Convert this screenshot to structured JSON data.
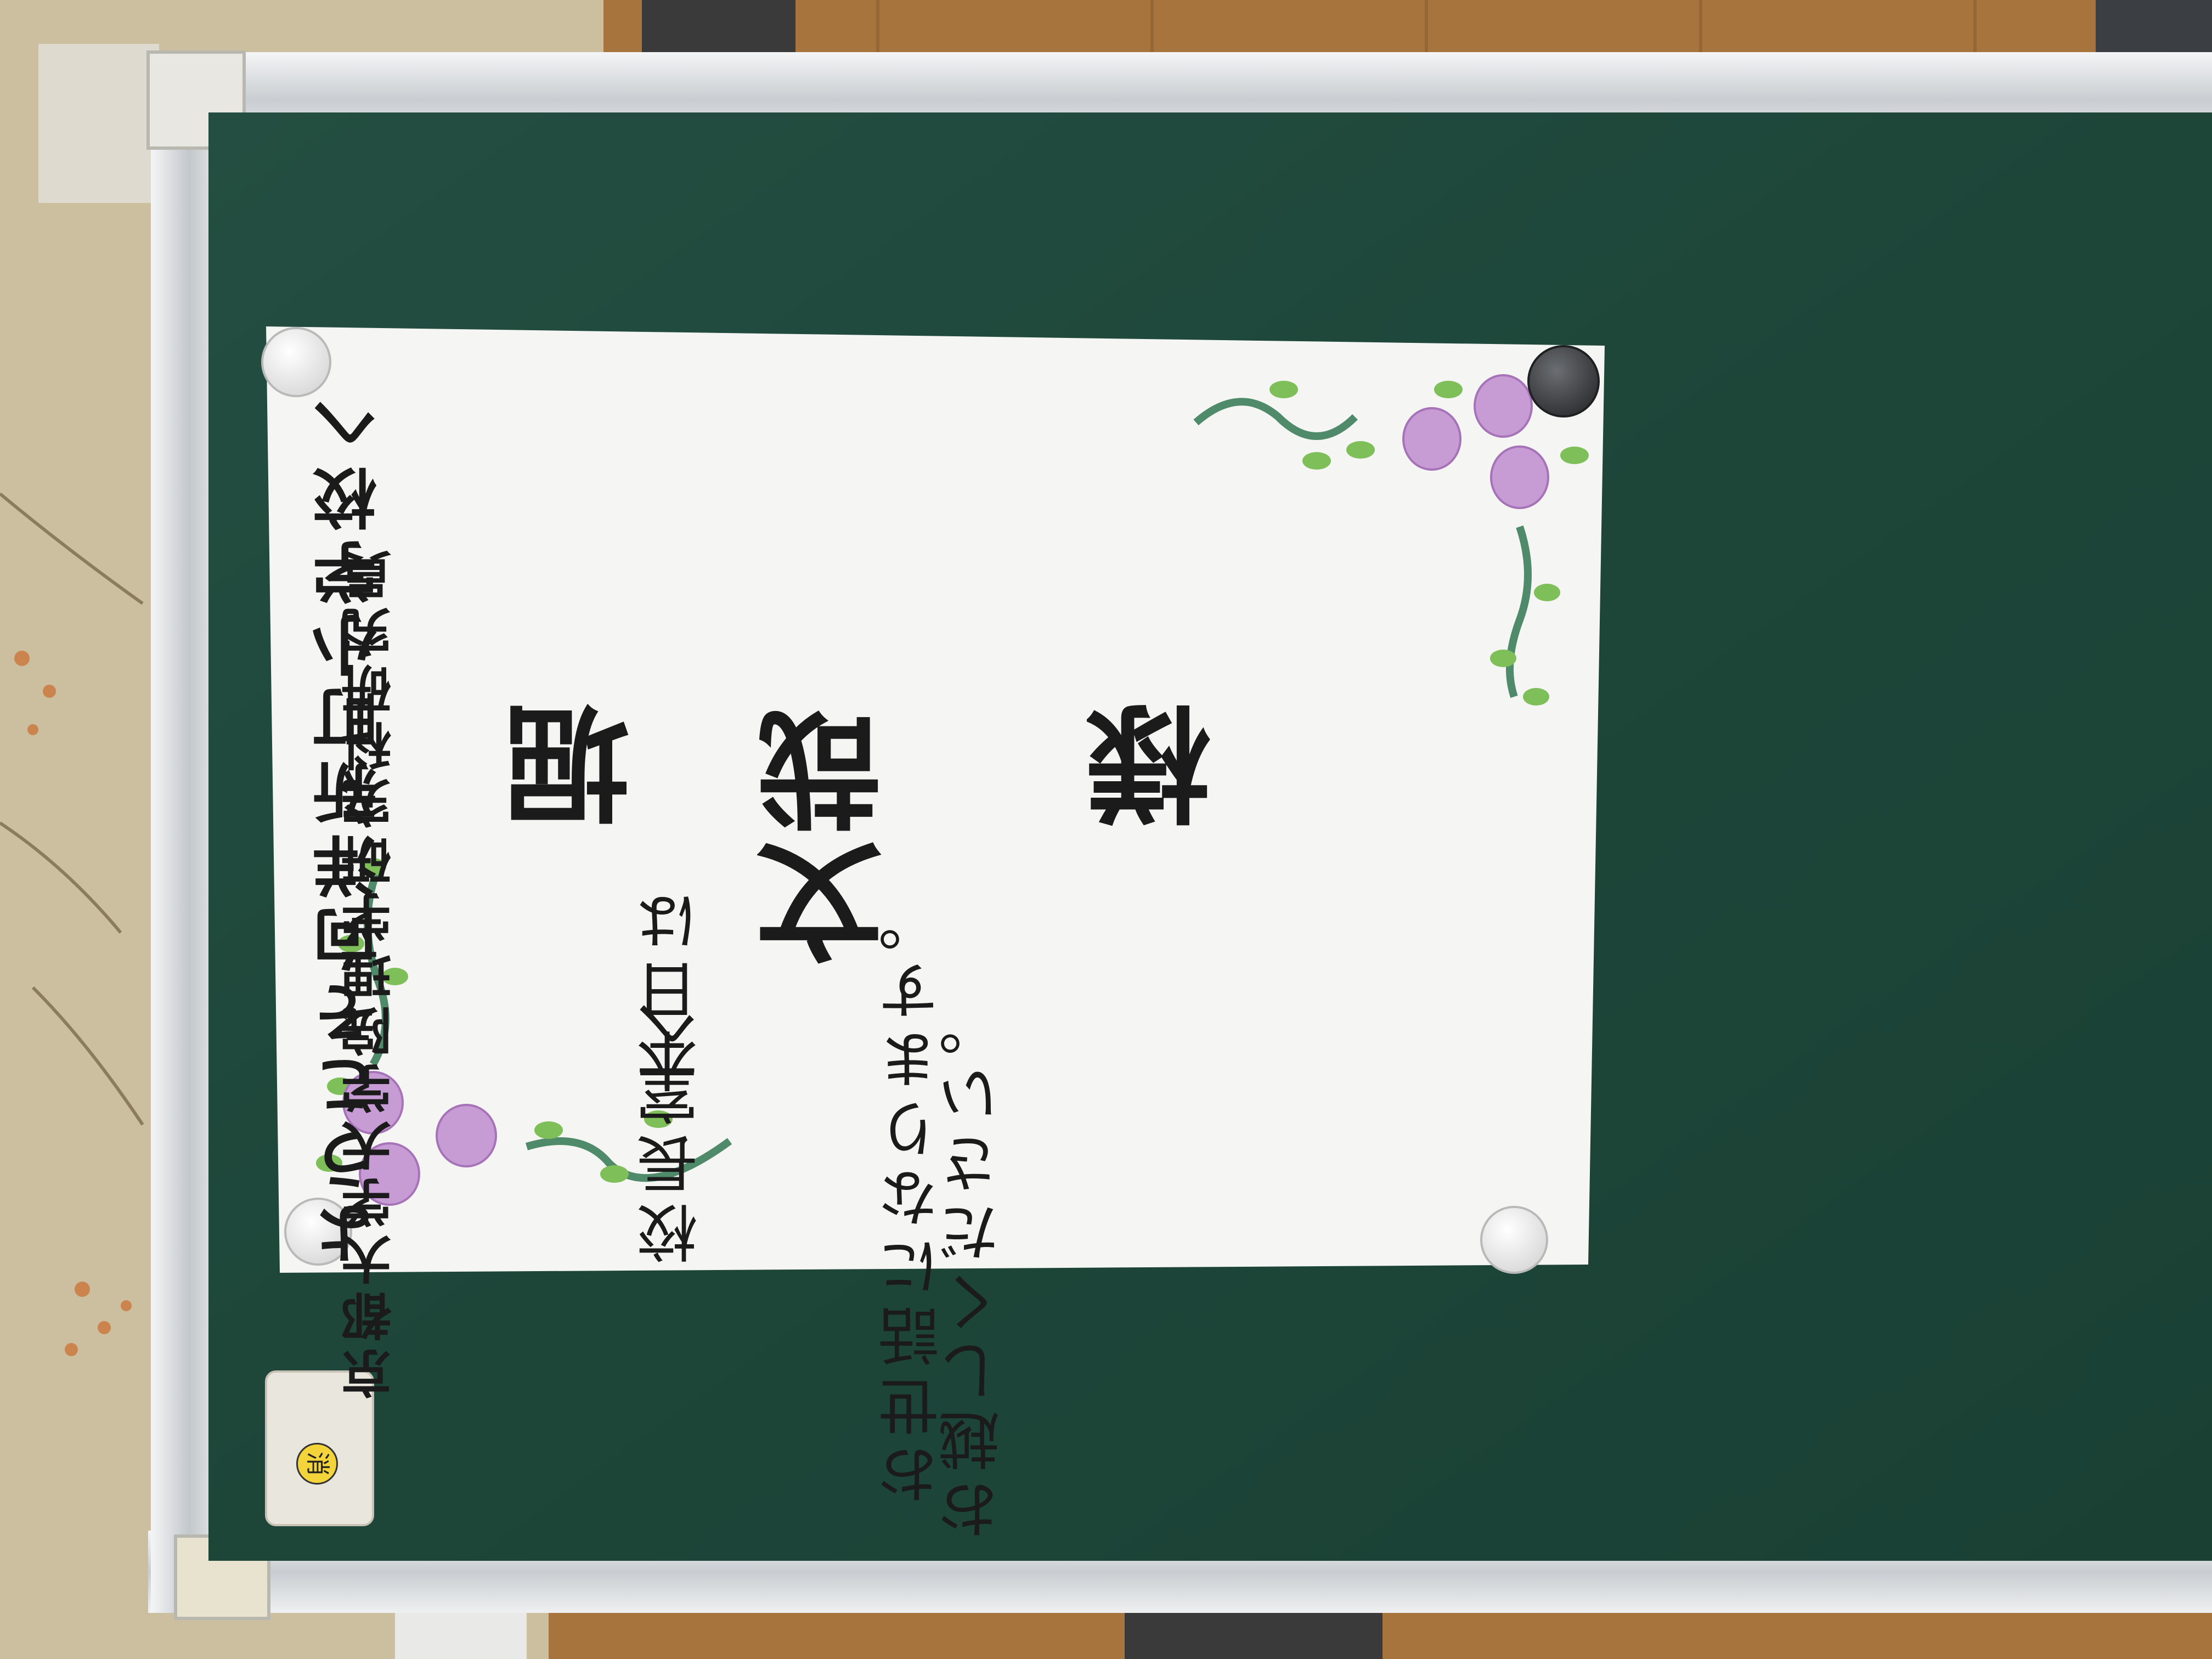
{
  "poster": {
    "welcome": "ようこそ向洋新町小学校へ",
    "affiliation": "京都大学大学院理学研究科研究員",
    "name_surname": "堀",
    "name_given": "文哉",
    "name_honorific": "様",
    "message_line1_a": "本日は",
    "message_line1_b": "お世話になります。",
    "message_line2_a": "校長室へ",
    "message_line2_b": "お越しください。"
  },
  "eraser": {
    "label": "消"
  },
  "colors": {
    "board_green": "#1f4a3c",
    "frame_silver": "#dfe2e4",
    "paper": "#f4f4f2",
    "flower_pink": "#c79bd3",
    "leaf_green": "#7fbf5a",
    "floor_wood": "#a9763f"
  }
}
